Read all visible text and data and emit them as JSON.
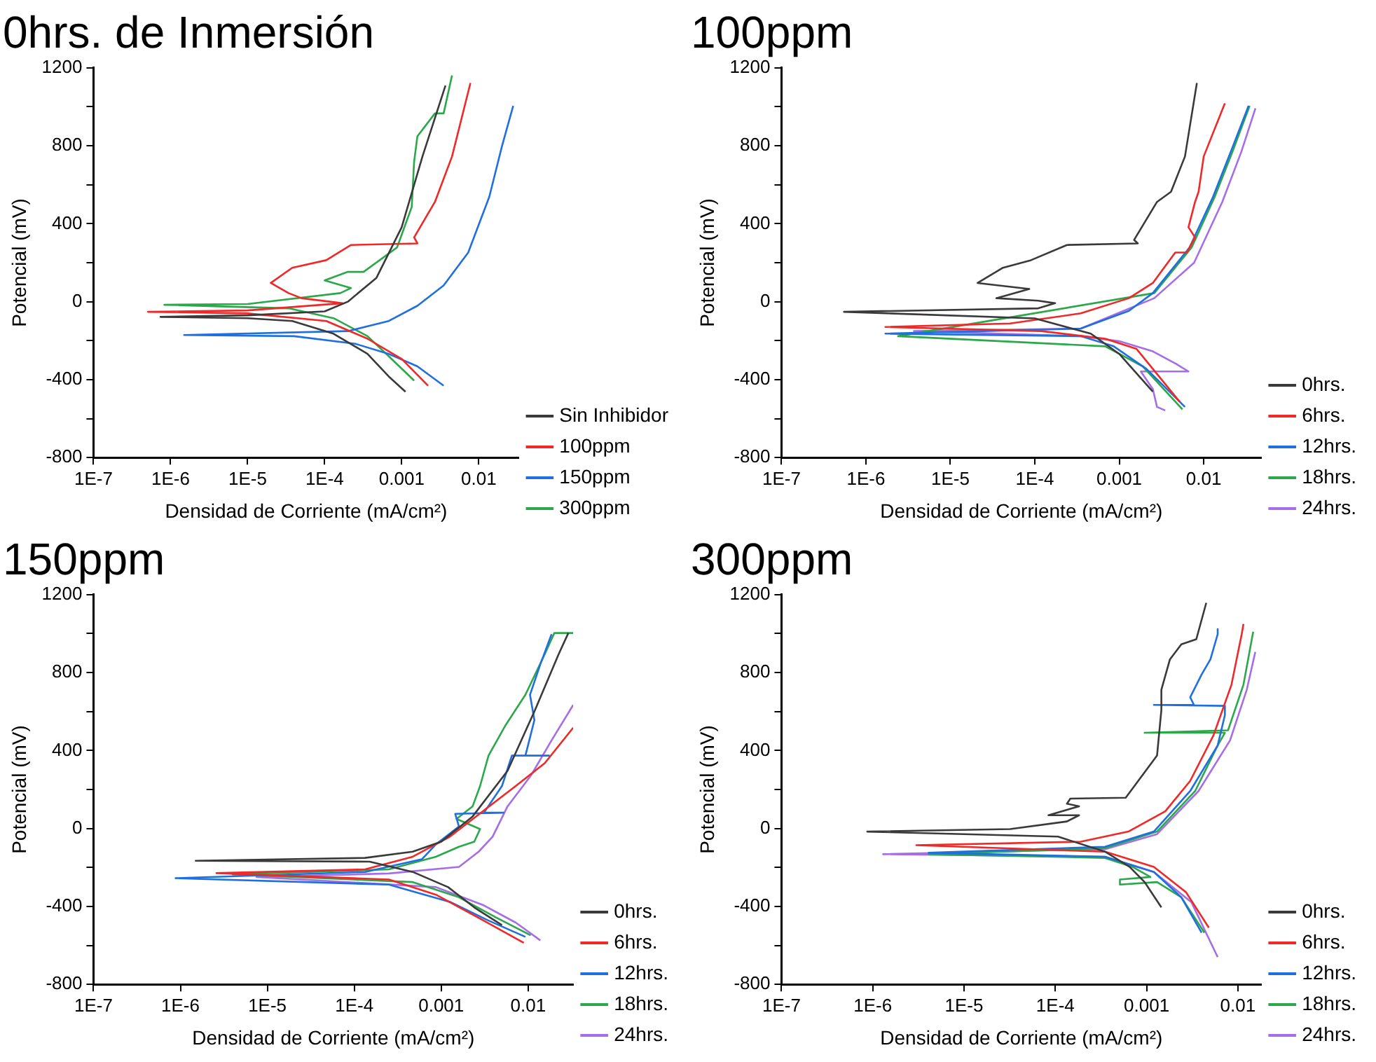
{
  "chart_data": [
    {
      "type": "line",
      "title": "0hrs. de Inmersión",
      "xlabel": "Densidad de Corriente (mA/cm²)",
      "ylabel": "Potencial (mV)",
      "log": "x",
      "legend": "right",
      "marker": "none",
      "xlim": [
        1e-07,
        0.033
      ],
      "xticks": [
        {
          "value": 1e-07,
          "label": "1E-7"
        },
        {
          "value": 1e-06,
          "label": "1E-6"
        },
        {
          "value": 1e-05,
          "label": "1E-5"
        },
        {
          "value": 0.0001,
          "label": "1E-4"
        },
        0.001,
        0.01
      ],
      "ylim": [
        -800,
        1200
      ],
      "yticks": [
        -800,
        {
          "value": -600,
          "label": null
        },
        -400,
        {
          "value": -200,
          "label": null
        },
        0,
        {
          "value": 200,
          "label": null
        },
        400,
        {
          "value": 600,
          "label": null
        },
        800,
        {
          "value": 1000,
          "label": null
        },
        1200
      ],
      "series": [
        {
          "name": "Sin Inhibidor",
          "color": "#3a3a3a",
          "x": [
            0.0037,
            0.00186,
            0.001,
            0.00047,
            0.0002,
            0.0001,
            1e-05,
            7.4e-07,
            1e-05,
            3.8e-05,
            0.00013,
            0.00036,
            0.00068,
            0.00112
          ],
          "values": [
            1109,
            745,
            382,
            122,
            0,
            -50,
            -70,
            -78,
            -85,
            -99,
            -164,
            -268,
            -384,
            -462
          ]
        },
        {
          "name": "100ppm",
          "color": "#f02828",
          "x": [
            0.0078,
            0.0045,
            0.0027,
            0.00145,
            0.0016,
            0.00022,
            0.000105,
            3.8e-05,
            2e-05,
            3.4e-05,
            5e-05,
            0.00017,
            1e-05,
            5.1e-07,
            1e-05,
            0.000105,
            0.00036,
            0.001,
            0.0022
          ],
          "values": [
            1122,
            745,
            512,
            330,
            299,
            291,
            213,
            174,
            96,
            44,
            18,
            -8,
            -45,
            -52,
            -60,
            -99,
            -190,
            -294,
            -431
          ]
        },
        {
          "name": "150ppm",
          "color": "#1f6fe0",
          "x": [
            0.028,
            0.02,
            0.0137,
            0.0073,
            0.0035,
            0.0016,
            0.00068,
            0.0002,
            1.5e-06,
            4e-05,
            0.00025,
            0.00068,
            0.0016,
            0.0035
          ],
          "values": [
            1005,
            797,
            538,
            252,
            83,
            -21,
            -99,
            -151,
            -171,
            -177,
            -216,
            -268,
            -332,
            -431
          ]
        },
        {
          "name": "300ppm",
          "color": "#2aa84a",
          "x": [
            0.0045,
            0.0035,
            0.0027,
            0.0016,
            0.00145,
            0.00135,
            0.00087,
            0.00032,
            0.0002,
            0.0001,
            0.00022,
            0.00016,
            1e-05,
            8.3e-07,
            3.4e-05,
            0.000133,
            0.00036,
            0.00074,
            0.00145
          ],
          "values": [
            1161,
            966,
            966,
            849,
            719,
            486,
            278,
            153,
            153,
            109,
            70,
            44,
            -12,
            -16,
            -34,
            -86,
            -177,
            -294,
            -405
          ]
        }
      ]
    },
    {
      "type": "line",
      "title": "100ppm",
      "xlabel": "Densidad de Corriente (mA/cm²)",
      "ylabel": "Potencial (mV)",
      "log": "x",
      "legend": "right",
      "marker": "none",
      "xlim": [
        1e-07,
        0.048
      ],
      "xticks": [
        {
          "value": 1e-07,
          "label": "1E-7"
        },
        {
          "value": 1e-06,
          "label": "1E-6"
        },
        {
          "value": 1e-05,
          "label": "1E-5"
        },
        {
          "value": 0.0001,
          "label": "1E-4"
        },
        0.001,
        0.01
      ],
      "ylim": [
        -800,
        1200
      ],
      "yticks": [
        -800,
        {
          "value": -600,
          "label": null
        },
        -400,
        {
          "value": -200,
          "label": null
        },
        0,
        {
          "value": 200,
          "label": null
        },
        400,
        {
          "value": 600,
          "label": null
        },
        800,
        {
          "value": 1000,
          "label": null
        },
        1200
      ],
      "series": [
        {
          "name": "0hrs.",
          "color": "#3a3a3a",
          "x": [
            0.0083,
            0.006,
            0.0041,
            0.0028,
            0.0015,
            0.00166,
            0.00024,
            9e-05,
            4.2e-05,
            2.1e-05,
            8.6e-05,
            3.5e-05,
            0.00011,
            0.000174,
            0.00011,
            5.5e-07,
            0.0001,
            0.00046,
            0.001,
            0.0025
          ],
          "values": [
            1122,
            745,
            564,
            512,
            317,
            299,
            291,
            213,
            174,
            96,
            65,
            18,
            5,
            -8,
            -34,
            -52,
            -86,
            -164,
            -268,
            -462
          ]
        },
        {
          "name": "6hrs.",
          "color": "#f02828",
          "x": [
            0.0178,
            0.01,
            0.0087,
            0.0079,
            0.0066,
            0.0079,
            0.0063,
            0.0046,
            0.0025,
            0.0018,
            0.0013,
            0.00035,
            5.1e-05,
            1.7e-06,
            0.00012,
            0.00068,
            0.0016,
            0.0052
          ],
          "values": [
            1018,
            745,
            564,
            512,
            382,
            330,
            252,
            252,
            96,
            57,
            18,
            -60,
            -112,
            -130,
            -151,
            -190,
            -242,
            -514
          ]
        },
        {
          "name": "12hrs.",
          "color": "#1f6fe0",
          "x": [
            0.034,
            0.021,
            0.0129,
            0.0068,
            0.0025,
            0.0013,
            0.00035,
            1.7e-06,
            0.00035,
            0.00086,
            0.0021,
            0.006
          ],
          "values": [
            1005,
            771,
            538,
            278,
            44,
            -47,
            -138,
            -164,
            -177,
            -229,
            -345,
            -540
          ]
        },
        {
          "name": "18hrs.",
          "color": "#2aa84a",
          "x": [
            0.035,
            0.022,
            0.0135,
            0.0072,
            0.0026,
            2.4e-06,
            0.00068,
            0.0019,
            0.0056
          ],
          "values": [
            1005,
            771,
            538,
            278,
            44,
            -177,
            -229,
            -332,
            -553
          ]
        },
        {
          "name": "24hrs.",
          "color": "#a56ee8",
          "x": [
            0.041,
            0.028,
            0.0166,
            0.0077,
            0.0026,
            0.00035,
            3.7e-06,
            0.00035,
            0.001,
            0.0025,
            0.0047,
            0.0066,
            0.0018,
            0.0025,
            0.0028,
            0.0035
          ],
          "values": [
            992,
            771,
            512,
            200,
            18,
            -138,
            -151,
            -177,
            -203,
            -255,
            -319,
            -358,
            -358,
            -449,
            -540,
            -558
          ]
        }
      ]
    },
    {
      "type": "line",
      "title": "150ppm",
      "xlabel": "Densidad de Corriente (mA/cm²)",
      "ylabel": "Potencial (mV)",
      "log": "x",
      "legend": "right",
      "marker": "none",
      "xlim": [
        1e-07,
        0.033
      ],
      "xticks": [
        {
          "value": 1e-07,
          "label": "1E-7"
        },
        {
          "value": 1e-06,
          "label": "1E-6"
        },
        {
          "value": 1e-05,
          "label": "1E-5"
        },
        {
          "value": 0.0001,
          "label": "1E-4"
        },
        0.001,
        0.01
      ],
      "ylim": [
        -800,
        1200
      ],
      "yticks": [
        -800,
        {
          "value": -600,
          "label": null
        },
        -400,
        {
          "value": -200,
          "label": null
        },
        0,
        {
          "value": 200,
          "label": null
        },
        400,
        {
          "value": 600,
          "label": null
        },
        800,
        {
          "value": 1000,
          "label": null
        },
        1200
      ],
      "series": [
        {
          "name": "0hrs.",
          "color": "#3a3a3a",
          "x": [
            0.029,
            0.0224,
            0.012,
            0.0058,
            0.0023,
            0.001,
            0.00047,
            0.000133,
            1.5e-06,
            0.00015,
            0.00047,
            0.0012,
            0.0024,
            0.005
          ],
          "values": [
            1003,
            894,
            608,
            296,
            62,
            -68,
            -119,
            -151,
            -166,
            -170,
            -223,
            -301,
            -405,
            -496
          ]
        },
        {
          "name": "6hrs.",
          "color": "#f02828",
          "x": [
            0.033,
            0.0155,
            0.0072,
            0.003,
            0.00126,
            0.00047,
            0.000133,
            2.6e-06,
            0.00025,
            0.00087,
            0.003,
            0.0089
          ],
          "values": [
            517,
            335,
            218,
            88,
            -42,
            -145,
            -210,
            -229,
            -262,
            -340,
            -470,
            -587
          ]
        },
        {
          "name": "12hrs.",
          "color": "#1f6fe0",
          "x": [
            0.0186,
            0.0138,
            0.0105,
            0.0118,
            0.0093,
            0.0174,
            0.0065,
            0.005,
            0.0031,
            0.0052,
            0.00145,
            0.0016,
            0.00087,
            0.0006,
            0.000133,
            8.8e-07,
            0.00025,
            0.0013,
            0.0034,
            0.0093
          ],
          "values": [
            997,
            842,
            686,
            556,
            374,
            374,
            374,
            218,
            81,
            81,
            75,
            10,
            -81,
            -158,
            -223,
            -255,
            -288,
            -379,
            -470,
            -556
          ]
        },
        {
          "name": "18hrs.",
          "color": "#2aa84a",
          "x": [
            0.033,
            0.02,
            0.0155,
            0.0093,
            0.0055,
            0.0035,
            0.0028,
            0.0023,
            0.0015,
            0.0028,
            0.0024,
            0.0016,
            0.00087,
            0.00025,
            4e-06,
            0.00047,
            0.0016,
            0.0043,
            0.0107
          ],
          "values": [
            1003,
            1003,
            894,
            686,
            530,
            374,
            218,
            114,
            49,
            -3,
            -68,
            -94,
            -145,
            -210,
            -236,
            -275,
            -353,
            -457,
            -548
          ]
        },
        {
          "name": "24hrs.",
          "color": "#a56ee8",
          "x": [
            0.033,
            0.0186,
            0.0107,
            0.0058,
            0.0039,
            0.0027,
            0.0016,
            0.00025,
            7.5e-06,
            0.00087,
            0.003,
            0.0072,
            0.0138
          ],
          "values": [
            634,
            452,
            270,
            114,
            -42,
            -119,
            -197,
            -231,
            -249,
            -301,
            -392,
            -483,
            -574
          ]
        }
      ]
    },
    {
      "type": "line",
      "title": "300ppm",
      "xlabel": "Densidad de Corriente (mA/cm²)",
      "ylabel": "Potencial (mV)",
      "log": "x",
      "legend": "right",
      "marker": "none",
      "xlim": [
        1e-07,
        0.018
      ],
      "xticks": [
        {
          "value": 1e-07,
          "label": "1E-7"
        },
        {
          "value": 1e-06,
          "label": "1E-6"
        },
        {
          "value": 1e-05,
          "label": "1E-5"
        },
        {
          "value": 0.0001,
          "label": "1E-4"
        },
        0.001,
        0.01
      ],
      "ylim": [
        -800,
        1200
      ],
      "yticks": [
        -800,
        {
          "value": -600,
          "label": null
        },
        -400,
        {
          "value": -200,
          "label": null
        },
        0,
        {
          "value": 200,
          "label": null
        },
        400,
        {
          "value": 600,
          "label": null
        },
        800,
        {
          "value": 1000,
          "label": null
        },
        1200
      ],
      "series": [
        {
          "name": "0hrs.",
          "color": "#3a3a3a",
          "x": [
            0.0045,
            0.0035,
            0.0024,
            0.0018,
            0.00145,
            0.00145,
            0.0013,
            0.00059,
            0.000146,
            0.000134,
            0.000182,
            8.4e-05,
            0.000182,
            0.000134,
            3.2e-05,
            8.7e-07,
            0.000107,
            0.00035,
            0.00065,
            0.00095,
            0.00145
          ],
          "values": [
            1158,
            971,
            945,
            868,
            712,
            608,
            374,
            158,
            153,
            127,
            114,
            68,
            68,
            36,
            -3,
            -16,
            -42,
            -119,
            -197,
            -275,
            -405
          ]
        },
        {
          "name": "6hrs.",
          "color": "#f02828",
          "x": [
            0.0115,
            0.011,
            0.0085,
            0.0054,
            0.003,
            0.0016,
            0.00063,
            0.00019,
            3e-06,
            0.00035,
            0.0012,
            0.0027,
            0.0048
          ],
          "values": [
            1049,
            997,
            738,
            478,
            244,
            88,
            -16,
            -68,
            -86,
            -119,
            -197,
            -327,
            -509
          ]
        },
        {
          "name": "12hrs.",
          "color": "#1f6fe0",
          "x": [
            0.006,
            0.006,
            0.005,
            0.004,
            0.003,
            0.0033,
            0.0024,
            0.0012,
            0.0072,
            0.0072,
            0.006,
            0.003,
            0.0012,
            0.00035,
            4.1e-06,
            0.00035,
            0.0012,
            0.0024,
            0.004
          ],
          "values": [
            1023,
            997,
            868,
            790,
            673,
            634,
            634,
            634,
            629,
            582,
            426,
            192,
            -16,
            -94,
            -125,
            -145,
            -223,
            -353,
            -535
          ]
        },
        {
          "name": "18hrs.",
          "color": "#2aa84a",
          "x": [
            0.0147,
            0.0115,
            0.0078,
            0.00095,
            0.0072,
            0.006,
            0.0034,
            0.0013,
            0.00035,
            4.1e-06,
            0.00035,
            0.0007,
            0.0011,
            0.00051,
            0.00051,
            0.0013,
            0.0024,
            0.0043
          ],
          "values": [
            1010,
            738,
            504,
            491,
            491,
            426,
            192,
            -16,
            -101,
            -132,
            -151,
            -197,
            -249,
            -262,
            -288,
            -275,
            -353,
            -535
          ]
        },
        {
          "name": "24hrs.",
          "color": "#a56ee8",
          "x": [
            0.0155,
            0.0125,
            0.0082,
            0.0037,
            0.0013,
            0.00035,
            1.3e-06,
            0.00035,
            0.0012,
            0.0031,
            0.006
          ],
          "values": [
            906,
            712,
            452,
            192,
            -29,
            -106,
            -132,
            -145,
            -223,
            -379,
            -660
          ]
        }
      ]
    }
  ]
}
